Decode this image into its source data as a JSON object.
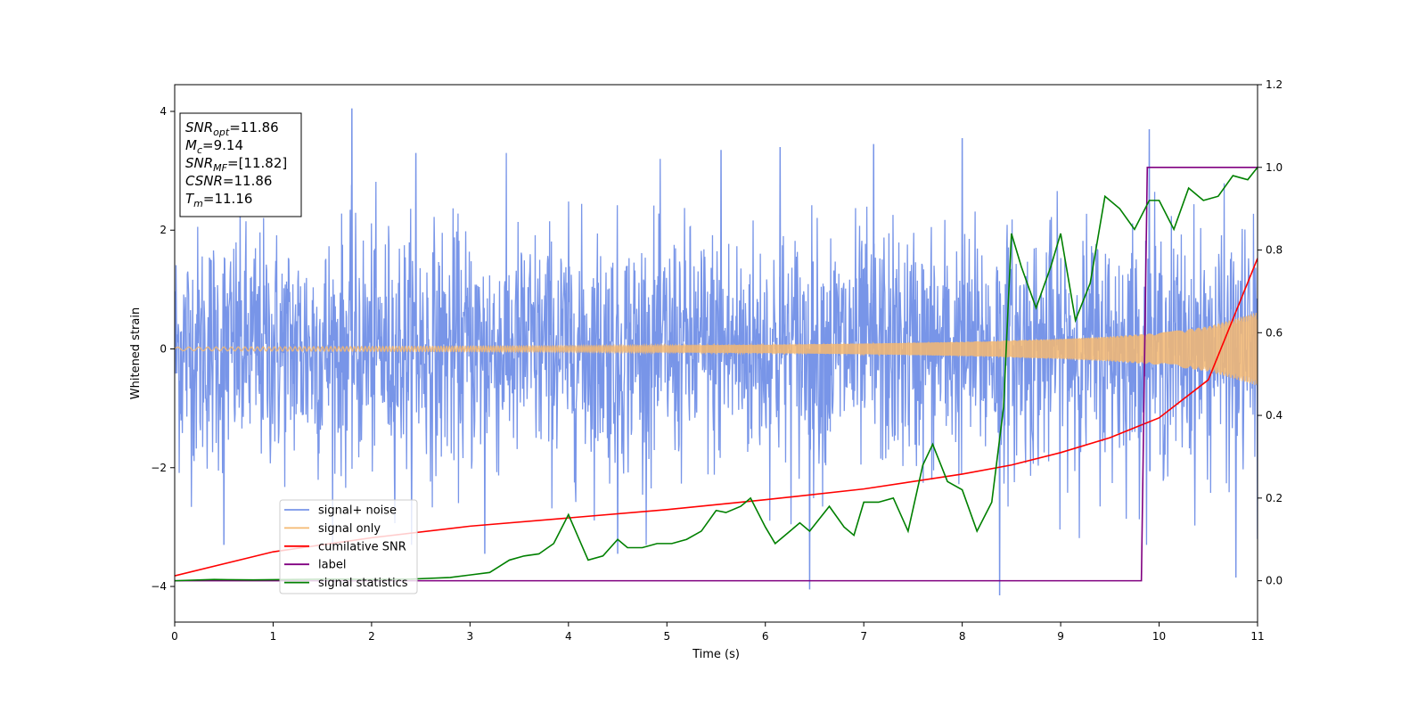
{
  "chart_data": {
    "type": "line",
    "xlabel": "Time (s)",
    "ylabel": "Whitened strain",
    "xlim": [
      0,
      11
    ],
    "ylim": [
      -4.6,
      4.45
    ],
    "y2lim": [
      -0.1,
      1.2
    ],
    "x_ticks": [
      0,
      1,
      2,
      3,
      4,
      5,
      6,
      7,
      8,
      9,
      10,
      11
    ],
    "x_tick_labels": [
      "0",
      "1",
      "2",
      "3",
      "4",
      "5",
      "6",
      "7",
      "8",
      "9",
      "10",
      "11"
    ],
    "y_ticks": [
      -4,
      -2,
      0,
      2,
      4
    ],
    "y_tick_labels": [
      "−4",
      "−2",
      "0",
      "2",
      "4"
    ],
    "y2_ticks": [
      0.0,
      0.2,
      0.4,
      0.6,
      0.8,
      1.0,
      1.2
    ],
    "y2_tick_labels": [
      "0.0",
      "0.2",
      "0.4",
      "0.6",
      "0.8",
      "1.0",
      "1.2"
    ],
    "grid": false,
    "legend_position": "lower-left",
    "annotation": {
      "lines": [
        {
          "sym": "SNR",
          "sub": "opt",
          "value": "=11.86"
        },
        {
          "sym": "M",
          "sub": "c",
          "value": "=9.14"
        },
        {
          "sym": "SNR",
          "sub": "MF",
          "value": "=[11.82]"
        },
        {
          "sym": "CSNR",
          "sub": "",
          "value": "=11.86"
        },
        {
          "sym": "T",
          "sub": "m",
          "value": "=11.16"
        }
      ]
    },
    "series": [
      {
        "name": "signal+ noise",
        "color": "#7895e8",
        "axis": "left",
        "description_type": "noise band",
        "typical_abs": 1.3,
        "peak_samples": [
          [
            1.8,
            4.05
          ],
          [
            2.45,
            3.3
          ],
          [
            5.55,
            3.35
          ],
          [
            6.15,
            3.4
          ],
          [
            7.1,
            3.45
          ],
          [
            8.0,
            3.55
          ],
          [
            9.9,
            3.7
          ],
          [
            6.45,
            -4.05
          ],
          [
            8.38,
            -4.15
          ],
          [
            10.78,
            -3.85
          ],
          [
            3.15,
            -3.45
          ],
          [
            4.5,
            -3.45
          ],
          [
            0.5,
            -3.3
          ],
          [
            11.0,
            -3.2
          ]
        ]
      },
      {
        "name": "signal only",
        "color": "#f5b971",
        "axis": "left",
        "description_type": "chirp envelope",
        "envelope_x": [
          0,
          2,
          4,
          6,
          7,
          8,
          9,
          9.5,
          10,
          10.5,
          11
        ],
        "envelope_y": [
          0.03,
          0.04,
          0.05,
          0.07,
          0.09,
          0.12,
          0.17,
          0.21,
          0.27,
          0.38,
          0.62
        ]
      },
      {
        "name": "cumilative SNR",
        "color": "#ff0000",
        "axis": "right",
        "x": [
          0,
          1,
          2,
          3,
          4,
          5,
          6,
          7,
          8,
          8.5,
          9,
          9.5,
          10,
          10.5,
          11
        ],
        "y": [
          0.012,
          0.07,
          0.104,
          0.132,
          0.152,
          0.172,
          0.196,
          0.222,
          0.258,
          0.28,
          0.31,
          0.346,
          0.394,
          0.486,
          0.78
        ]
      },
      {
        "name": "label",
        "color": "#800080",
        "axis": "right",
        "x": [
          0,
          9.82,
          9.88,
          11
        ],
        "y": [
          0,
          0,
          1.0,
          1.0
        ]
      },
      {
        "name": "signal statistics",
        "color": "#008000",
        "axis": "right",
        "x": [
          0,
          0.4,
          0.8,
          1.2,
          1.6,
          2.0,
          2.4,
          2.8,
          3.0,
          3.2,
          3.4,
          3.55,
          3.7,
          3.85,
          4.0,
          4.1,
          4.2,
          4.35,
          4.5,
          4.6,
          4.75,
          4.9,
          5.05,
          5.2,
          5.35,
          5.5,
          5.6,
          5.75,
          5.85,
          6.0,
          6.1,
          6.25,
          6.35,
          6.45,
          6.55,
          6.65,
          6.8,
          6.9,
          7.0,
          7.15,
          7.3,
          7.45,
          7.6,
          7.7,
          7.85,
          8.0,
          8.15,
          8.3,
          8.42,
          8.5,
          8.6,
          8.75,
          8.9,
          9.0,
          9.15,
          9.3,
          9.45,
          9.6,
          9.75,
          9.9,
          10.0,
          10.15,
          10.3,
          10.45,
          10.6,
          10.75,
          10.9,
          11.0
        ],
        "y": [
          0.0,
          0.003,
          0.002,
          0.003,
          0.004,
          0.003,
          0.004,
          0.008,
          0.014,
          0.02,
          0.05,
          0.06,
          0.065,
          0.09,
          0.16,
          0.105,
          0.05,
          0.06,
          0.1,
          0.08,
          0.08,
          0.09,
          0.09,
          0.1,
          0.12,
          0.17,
          0.165,
          0.18,
          0.2,
          0.13,
          0.09,
          0.12,
          0.14,
          0.12,
          0.15,
          0.18,
          0.13,
          0.11,
          0.19,
          0.19,
          0.2,
          0.12,
          0.28,
          0.33,
          0.24,
          0.22,
          0.12,
          0.19,
          0.42,
          0.84,
          0.76,
          0.66,
          0.76,
          0.84,
          0.63,
          0.72,
          0.93,
          0.9,
          0.85,
          0.92,
          0.92,
          0.85,
          0.95,
          0.92,
          0.93,
          0.98,
          0.97,
          1.0
        ]
      }
    ]
  }
}
